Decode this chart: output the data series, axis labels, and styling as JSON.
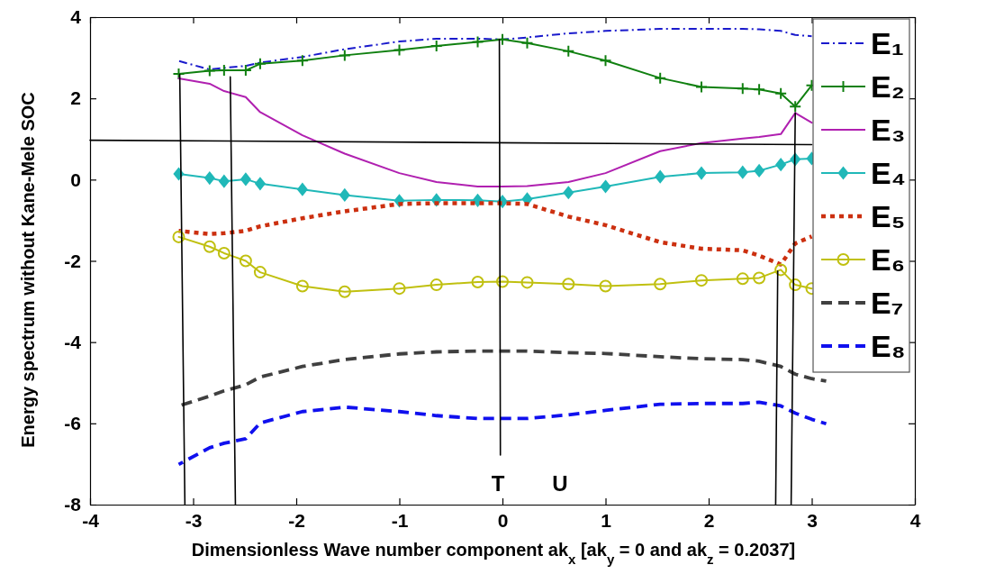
{
  "chart_data": {
    "type": "line",
    "xlabel": "Dimensionless Wave number component ak$_{x}$ [ak$_{y}$ = 0 and ak$_{z}$ = 0.2037]",
    "ylabel": "Energy spectrum without Kane-Mele SOC",
    "x": [
      -3.14,
      -2.84,
      -2.7,
      -2.49,
      -2.35,
      -1.94,
      -1.53,
      -1.0,
      -0.64,
      -0.24,
      0,
      0.24,
      0.64,
      1.0,
      1.53,
      1.93,
      2.33,
      2.49,
      2.7,
      2.84,
      3.0,
      3.14
    ],
    "xlim": [
      -4,
      4
    ],
    "xticks": [
      -4,
      -3,
      -2,
      -1,
      0,
      1,
      2,
      3,
      4
    ],
    "ylim": [
      -8,
      4
    ],
    "yticks": [
      -8,
      -6,
      -4,
      -2,
      0,
      2,
      4
    ],
    "grid": false,
    "legend": "top right",
    "series": [
      {
        "name": "E₁",
        "color": "#1a1acc",
        "line_style": "dashdot",
        "marker": "none",
        "values": [
          2.92,
          2.71,
          2.75,
          2.8,
          2.88,
          3.02,
          3.21,
          3.4,
          3.47,
          3.47,
          3.45,
          3.5,
          3.6,
          3.66,
          3.71,
          3.71,
          3.71,
          3.7,
          3.66,
          3.56,
          3.53,
          null
        ]
      },
      {
        "name": "E₂",
        "color": "#108010",
        "line_style": "solid",
        "marker": "cross",
        "values": [
          2.6,
          2.68,
          2.69,
          2.69,
          2.85,
          2.93,
          3.06,
          3.19,
          3.29,
          3.39,
          3.45,
          3.36,
          3.16,
          2.93,
          2.5,
          2.28,
          2.24,
          2.22,
          2.12,
          1.8,
          2.32,
          null
        ]
      },
      {
        "name": "E₃",
        "color": "#b020b0",
        "line_style": "solid",
        "marker": "none",
        "values": [
          2.49,
          2.36,
          2.18,
          2.03,
          1.66,
          1.09,
          0.64,
          0.16,
          -0.06,
          -0.17,
          -0.17,
          -0.16,
          -0.06,
          0.16,
          0.7,
          0.9,
          1.01,
          1.05,
          1.12,
          1.64,
          1.4,
          null
        ]
      },
      {
        "name": "E₄",
        "color": "#20b8b8",
        "line_style": "solid",
        "marker": "diamond",
        "values": [
          0.14,
          0.04,
          -0.04,
          0.01,
          -0.1,
          -0.24,
          -0.38,
          -0.52,
          -0.5,
          -0.51,
          -0.54,
          -0.48,
          -0.32,
          -0.17,
          0.07,
          0.16,
          0.18,
          0.22,
          0.37,
          0.5,
          0.52,
          null
        ]
      },
      {
        "name": "E₅",
        "color": "#cc3010",
        "line_style": "dotted",
        "marker": "none",
        "values": [
          -1.26,
          -1.34,
          -1.32,
          -1.26,
          -1.15,
          -0.95,
          -0.78,
          -0.6,
          -0.58,
          -0.58,
          -0.58,
          -0.6,
          -0.91,
          -1.12,
          -1.54,
          -1.7,
          -1.74,
          -1.87,
          -2.09,
          -1.57,
          -1.4,
          null
        ]
      },
      {
        "name": "E₆",
        "color": "#c0c010",
        "line_style": "solid",
        "marker": "circle",
        "values": [
          -1.41,
          -1.65,
          -1.81,
          -2.0,
          -2.28,
          -2.62,
          -2.76,
          -2.68,
          -2.59,
          -2.52,
          -2.51,
          -2.53,
          -2.57,
          -2.62,
          -2.57,
          -2.48,
          -2.44,
          -2.42,
          -2.22,
          -2.59,
          -2.68,
          null
        ]
      },
      {
        "name": "E₇",
        "color": "#404040",
        "line_style": "dashed",
        "marker": "none",
        "values": [
          -5.57,
          -5.33,
          -5.2,
          -5.05,
          -4.86,
          -4.6,
          -4.43,
          -4.29,
          -4.24,
          -4.22,
          -4.22,
          -4.22,
          -4.26,
          -4.28,
          -4.36,
          -4.41,
          -4.43,
          -4.47,
          -4.6,
          -4.79,
          -4.9,
          -4.96
        ]
      },
      {
        "name": "E₈",
        "color": "#1010ee",
        "line_style": "dashed",
        "marker": "none",
        "values": [
          -7.01,
          -6.6,
          -6.49,
          -6.38,
          -5.99,
          -5.71,
          -5.6,
          -5.71,
          -5.81,
          -5.88,
          -5.88,
          -5.88,
          -5.79,
          -5.68,
          -5.53,
          -5.51,
          -5.51,
          -5.48,
          -5.57,
          -5.75,
          -5.9,
          -6.01
        ]
      },
      {
        "color": "#000000",
        "line_style": "solid",
        "marker": "none",
        "x": [
          -4,
          3.0
        ],
        "values": [
          0.97,
          0.86
        ]
      },
      {
        "color": "#000000",
        "line_style": "solid",
        "marker": "none",
        "x": [
          -3.13,
          -3.08
        ],
        "values": [
          2.59,
          -8
        ]
      },
      {
        "color": "#000000",
        "line_style": "solid",
        "marker": "none",
        "x": [
          -2.64,
          -2.59
        ],
        "values": [
          2.53,
          -8
        ]
      },
      {
        "color": "#000000",
        "line_style": "solid",
        "marker": "none",
        "x": [
          -0.03,
          -0.02
        ],
        "values": [
          3.45,
          -6.78
        ]
      },
      {
        "color": "#000000",
        "line_style": "solid",
        "marker": "none",
        "x": [
          2.67,
          2.65
        ],
        "values": [
          -2.25,
          -8
        ]
      },
      {
        "color": "#000000",
        "line_style": "solid",
        "marker": "none",
        "x": [
          2.8,
          2.84
        ],
        "values": [
          -8,
          1.64
        ]
      }
    ],
    "annotations": [
      "T",
      "U"
    ]
  }
}
